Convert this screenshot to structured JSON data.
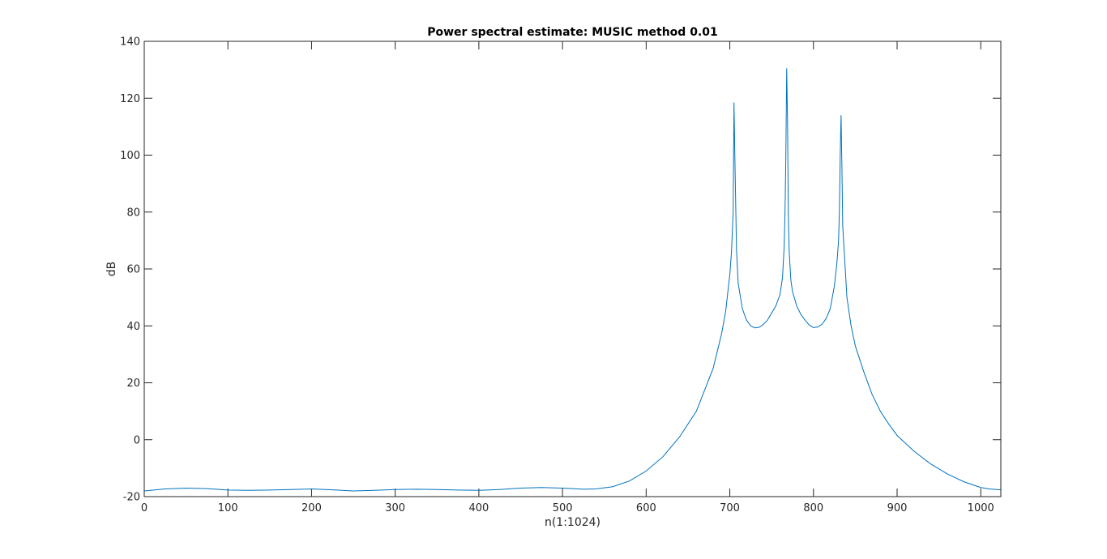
{
  "chart_data": {
    "type": "line",
    "title": "Power spectral estimate: MUSIC method 0.01",
    "xlabel": "n(1:1024)",
    "ylabel": "dB",
    "xlim": [
      0,
      1024
    ],
    "ylim": [
      -20,
      140
    ],
    "xticks": [
      0,
      100,
      200,
      300,
      400,
      500,
      600,
      700,
      800,
      900,
      1000
    ],
    "yticks": [
      -20,
      0,
      20,
      40,
      60,
      80,
      100,
      120,
      140
    ],
    "grid": false,
    "legend": "none",
    "line_color": "#0072bd",
    "series": [
      {
        "x": [
          0,
          25,
          50,
          75,
          100,
          125,
          150,
          175,
          200,
          225,
          250,
          275,
          300,
          325,
          350,
          375,
          400,
          425,
          450,
          475,
          500,
          525,
          540,
          560,
          580,
          600,
          620,
          640,
          660,
          680,
          690,
          695,
          700,
          702,
          704,
          705,
          706,
          708,
          710,
          715,
          720,
          725,
          730,
          735,
          740,
          745,
          750,
          755,
          760,
          763,
          765,
          766,
          767,
          768,
          769,
          770,
          771,
          773,
          775,
          780,
          785,
          790,
          795,
          800,
          805,
          810,
          815,
          820,
          825,
          828,
          830,
          831,
          832,
          833,
          834,
          835,
          838,
          840,
          845,
          850,
          860,
          870,
          880,
          890,
          900,
          920,
          940,
          960,
          980,
          1000,
          1010,
          1024
        ],
        "y": [
          -18,
          -17.3,
          -17.0,
          -17.2,
          -17.7,
          -17.8,
          -17.7,
          -17.5,
          -17.3,
          -17.6,
          -18.0,
          -17.8,
          -17.5,
          -17.4,
          -17.5,
          -17.7,
          -17.8,
          -17.5,
          -17.0,
          -16.8,
          -17.0,
          -17.4,
          -17.3,
          -16.5,
          -14.5,
          -11.0,
          -6.0,
          1.0,
          10.0,
          25.0,
          37.0,
          45.0,
          58.0,
          66.0,
          80.0,
          118.5,
          100.0,
          67.0,
          55.0,
          46.0,
          42.0,
          40.0,
          39.3,
          39.5,
          40.5,
          42.0,
          44.5,
          47.0,
          51.0,
          57.0,
          68.0,
          80.0,
          100.0,
          130.5,
          112.0,
          78.0,
          66.0,
          56.0,
          52.0,
          47.0,
          44.0,
          42.0,
          40.3,
          39.4,
          39.6,
          40.5,
          42.5,
          46.0,
          54.0,
          62.0,
          70.0,
          80.0,
          100.0,
          114.0,
          96.0,
          75.0,
          60.0,
          50.0,
          40.0,
          33.0,
          24.0,
          16.0,
          10.0,
          5.5,
          1.5,
          -4.0,
          -8.5,
          -12.0,
          -14.8,
          -16.8,
          -17.3,
          -17.6
        ]
      }
    ]
  }
}
